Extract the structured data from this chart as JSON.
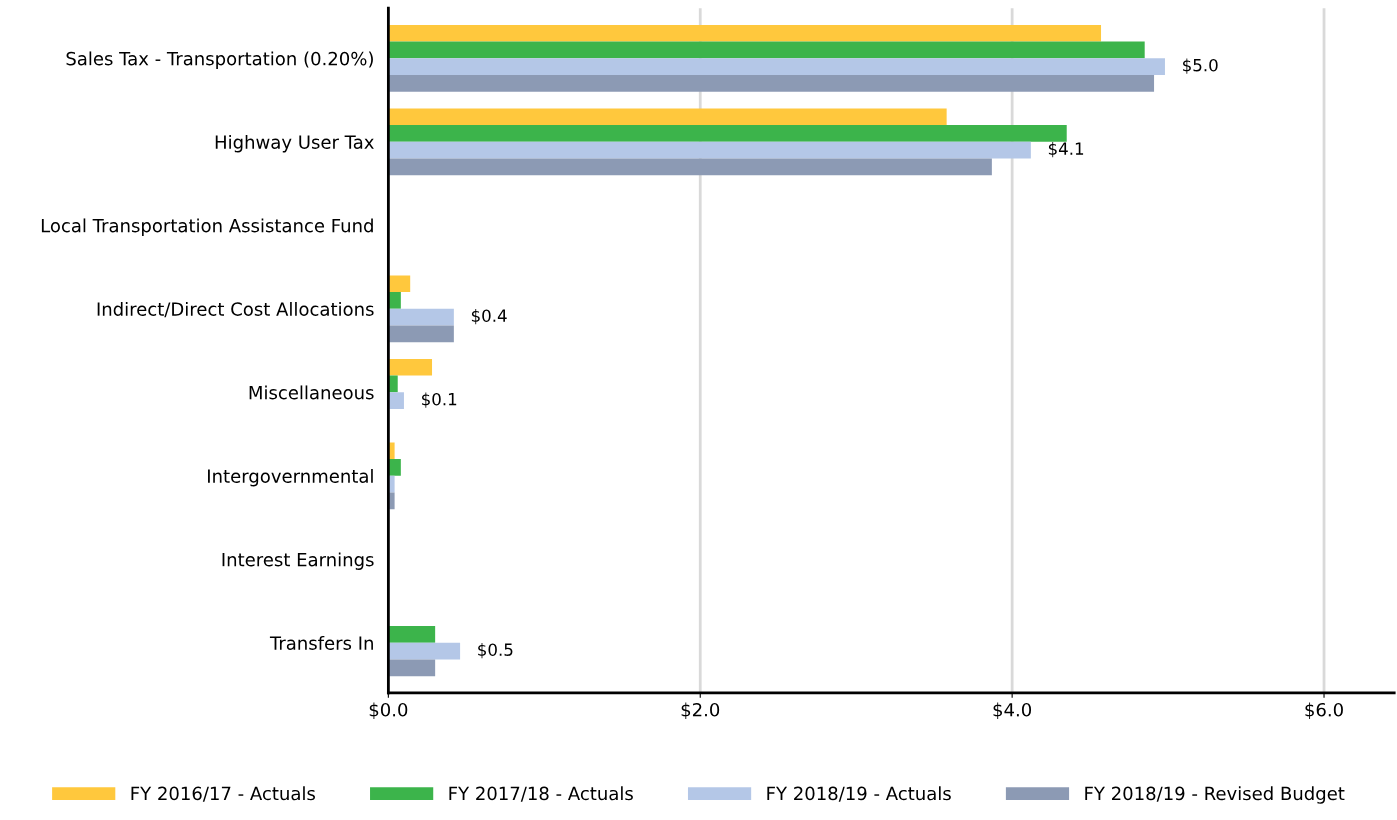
{
  "chart_data": {
    "type": "bar",
    "orientation": "horizontal",
    "categories": [
      "Sales Tax - Transportation (0.20%)",
      "Highway User Tax",
      "Local Transportation Assistance Fund",
      "Indirect/Direct Cost Allocations",
      "Miscellaneous",
      "Intergovernmental",
      "Interest Earnings",
      "Transfers In"
    ],
    "series": [
      {
        "name": "FY 2016/17 - Actuals",
        "color": "#ffc83d",
        "values": [
          4.57,
          3.58,
          null,
          0.14,
          0.28,
          0.04,
          null,
          null
        ]
      },
      {
        "name": "FY 2017/18 - Actuals",
        "color": "#3cb44b",
        "values": [
          4.85,
          4.35,
          null,
          0.08,
          0.06,
          0.08,
          null,
          0.3
        ]
      },
      {
        "name": "FY 2018/19 - Actuals",
        "color": "#b4c7e7",
        "values": [
          4.98,
          4.12,
          null,
          0.42,
          0.1,
          0.04,
          null,
          0.46
        ],
        "value_labels": [
          "$5.0",
          "$4.1",
          null,
          "$0.4",
          "$0.1",
          null,
          null,
          "$0.5"
        ]
      },
      {
        "name": "FY 2018/19 - Revised Budget",
        "color": "#8c9ab4",
        "values": [
          4.91,
          3.87,
          null,
          0.42,
          null,
          0.04,
          null,
          0.3
        ]
      }
    ],
    "xlim": [
      0,
      6.45
    ],
    "xticks": [
      {
        "value": 0,
        "label": "$0.0"
      },
      {
        "value": 2,
        "label": "$2.0"
      },
      {
        "value": 4,
        "label": "$4.0"
      },
      {
        "value": 6,
        "label": "$6.0"
      }
    ],
    "grid": "x",
    "legend": "bottom"
  }
}
